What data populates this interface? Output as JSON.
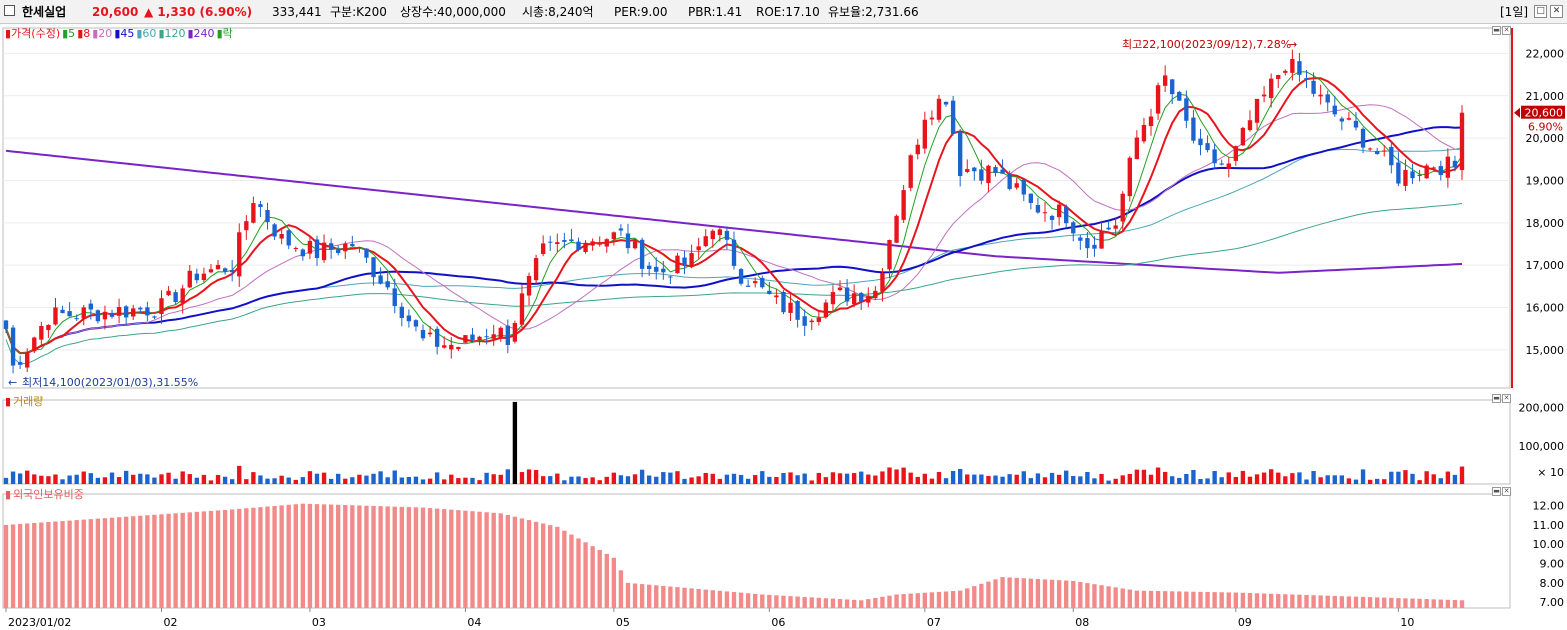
{
  "header": {
    "name": "한세실업",
    "price": "20,600",
    "change": "▲ 1,330 (6.90%)",
    "volume": "333,441",
    "market": "구분:K200",
    "shares": "상장수:40,000,000",
    "mcap": "시총:8,240억",
    "per": "PER:9.00",
    "pbr": "PBR:1.41",
    "roe": "ROE:17.10",
    "reserve": "유보율:2,731.66",
    "period": "[1일]",
    "close_label": "✕",
    "restore_label": "□"
  },
  "colors": {
    "up": "#e8141c",
    "down": "#1b64cf",
    "ma45": "#1010c8",
    "ma240": "#7a24c8",
    "ma120": "#3aa68a",
    "foreign": "#f28a8a"
  },
  "price_panel": {
    "legend": [
      {
        "text": "가격(수정)",
        "color": "#e8141c"
      },
      {
        "text": "5",
        "color": "#22a022"
      },
      {
        "text": "8",
        "color": "#e8141c"
      },
      {
        "text": "20",
        "color": "#c070c0"
      },
      {
        "text": "45",
        "color": "#1010c8"
      },
      {
        "text": "60",
        "color": "#4aa6b8"
      },
      {
        "text": "120",
        "color": "#3aa68a"
      },
      {
        "text": "240",
        "color": "#7a24c8"
      },
      {
        "text": "락",
        "color": "#22a022"
      }
    ],
    "y_ticks": [
      "22,000",
      "21,000",
      "20,000",
      "19,000",
      "18,000",
      "17,000",
      "16,000",
      "15,000"
    ],
    "high_note": "최고22,100(2023/09/12),7.28%",
    "low_note": "최저14,100(2023/01/03),31.55%",
    "last_price": "20,600",
    "last_pct": "6.90%"
  },
  "volume_panel": {
    "legend": "거래량",
    "y_ticks": [
      "200,000",
      "100,000"
    ],
    "multiplier": "× 10"
  },
  "foreign_panel": {
    "legend": "외국인보유비중",
    "y_ticks": [
      "12.00",
      "11.00",
      "10.00",
      "9.00",
      "8.00",
      "7.00"
    ]
  },
  "x_axis": [
    "2023/01/02",
    "02",
    "03",
    "04",
    "05",
    "06",
    "07",
    "08",
    "09",
    "10"
  ],
  "chart_data": {
    "type": "candlestick",
    "x_range": [
      "2023/01/02",
      "2023/10"
    ],
    "price_ylim": [
      14100,
      22600
    ],
    "volume_ylim": [
      0,
      220000
    ],
    "foreign_ylim": [
      6.7,
      12.6
    ],
    "price_anchors": [
      [
        "2023/01/02",
        15500
      ],
      [
        "2023/01/03",
        14600
      ],
      [
        "2023/01/10",
        15800
      ],
      [
        "2023/01/20",
        15900
      ],
      [
        "2023/02/01",
        16000
      ],
      [
        "2023/02/08",
        16800
      ],
      [
        "2023/02/15",
        17000
      ],
      [
        "2023/02/20",
        18600
      ],
      [
        "2023/02/24",
        17600
      ],
      [
        "2023/03/03",
        17300
      ],
      [
        "2023/03/10",
        17500
      ],
      [
        "2023/03/17",
        16500
      ],
      [
        "2023/03/24",
        15200
      ],
      [
        "2023/03/31",
        15100
      ],
      [
        "2023/04/07",
        15500
      ],
      [
        "2023/04/11",
        15300
      ],
      [
        "2023/04/13",
        16200
      ],
      [
        "2023/04/18",
        17300
      ],
      [
        "2023/04/25",
        17600
      ],
      [
        "2023/05/03",
        17700
      ],
      [
        "2023/05/10",
        16800
      ],
      [
        "2023/05/17",
        17100
      ],
      [
        "2023/05/22",
        18000
      ],
      [
        "2023/05/26",
        16800
      ],
      [
        "2023/06/02",
        16100
      ],
      [
        "2023/06/08",
        15800
      ],
      [
        "2023/06/15",
        16300
      ],
      [
        "2023/06/22",
        16400
      ],
      [
        "2023/06/27",
        18300
      ],
      [
        "2023/07/03",
        20600
      ],
      [
        "2023/07/06",
        21000
      ],
      [
        "2023/07/10",
        19300
      ],
      [
        "2023/07/17",
        19200
      ],
      [
        "2023/07/24",
        18400
      ],
      [
        "2023/07/31",
        18200
      ],
      [
        "2023/08/03",
        17500
      ],
      [
        "2023/08/09",
        18000
      ],
      [
        "2023/08/14",
        20000
      ],
      [
        "2023/08/18",
        21400
      ],
      [
        "2023/08/25",
        19600
      ],
      [
        "2023/08/31",
        19300
      ],
      [
        "2023/09/05",
        20400
      ],
      [
        "2023/09/12",
        21800
      ],
      [
        "2023/09/15",
        21300
      ],
      [
        "2023/09/20",
        20700
      ],
      [
        "2023/09/27",
        20000
      ],
      [
        "2023/10/04",
        19100
      ],
      [
        "2023/10/11",
        19400
      ],
      [
        "2023/10/16",
        19300
      ],
      [
        "2023/10/17",
        20600
      ]
    ],
    "volume_spike": {
      "date": "2023/04/12",
      "value": 215000
    },
    "foreign_ratio_anchors": [
      [
        "2023/01/02",
        11.0
      ],
      [
        "2023/02/15",
        11.8
      ],
      [
        "2023/03/01",
        12.1
      ],
      [
        "2023/03/24",
        11.9
      ],
      [
        "2023/04/10",
        11.6
      ],
      [
        "2023/04/20",
        10.9
      ],
      [
        "2023/05/02",
        9.3
      ],
      [
        "2023/05/04",
        8.0
      ],
      [
        "2023/05/31",
        7.4
      ],
      [
        "2023/06/20",
        7.1
      ],
      [
        "2023/06/27",
        7.4
      ],
      [
        "2023/07/10",
        7.6
      ],
      [
        "2023/07/18",
        8.3
      ],
      [
        "2023/08/01",
        8.1
      ],
      [
        "2023/08/14",
        7.6
      ],
      [
        "2023/09/01",
        7.5
      ],
      [
        "2023/10/17",
        7.1
      ]
    ],
    "moving_averages": [
      "5",
      "8",
      "20",
      "45",
      "60",
      "120",
      "240"
    ]
  }
}
